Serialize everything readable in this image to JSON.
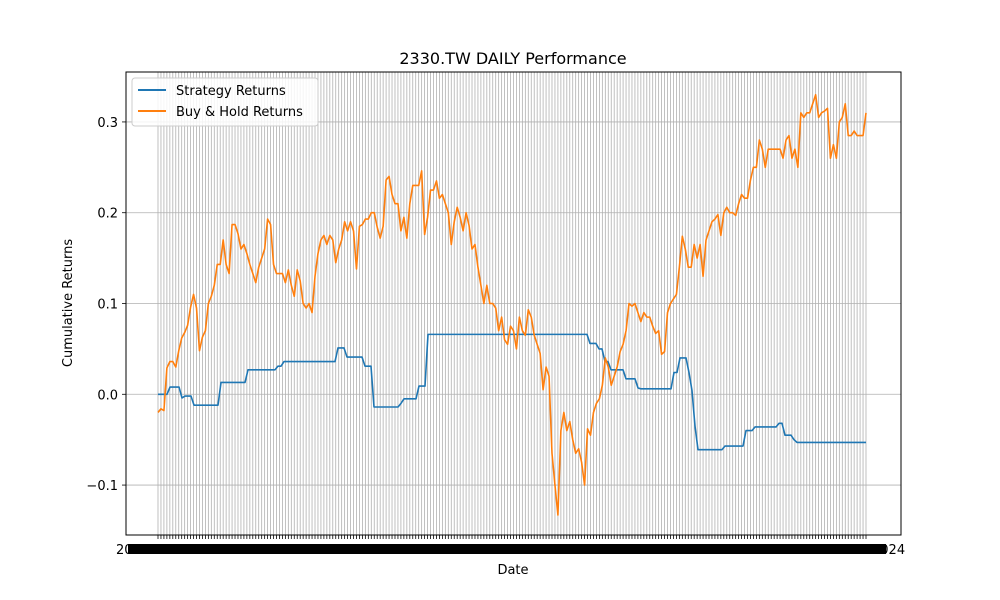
{
  "chart_data": {
    "type": "line",
    "title": "2330.TW DAILY Performance",
    "xlabel": "Date",
    "ylabel": "Cumulative Returns",
    "ylim": [
      -0.155,
      0.355
    ],
    "yticks": [
      -0.1,
      0.0,
      0.1,
      0.2,
      0.3
    ],
    "ytick_labels": [
      "−0.1",
      "0.0",
      "0.1",
      "0.2",
      "0.3"
    ],
    "x_tick_count": 240,
    "x_tick_labels_note": "overlapping unreadable date labels",
    "x_start_label": "2023",
    "x_end_label": "2024",
    "grid": true,
    "legend_position": "top-left",
    "series": [
      {
        "name": "Strategy Returns",
        "color": "#1f77b4",
        "values": [
          0.0,
          0.0,
          0.0,
          0.0,
          0.008,
          0.008,
          0.008,
          0.008,
          -0.004,
          -0.002,
          -0.002,
          -0.002,
          -0.012,
          -0.012,
          -0.012,
          -0.012,
          -0.012,
          -0.012,
          -0.012,
          -0.012,
          -0.012,
          0.013,
          0.013,
          0.013,
          0.013,
          0.013,
          0.013,
          0.013,
          0.013,
          0.013,
          0.027,
          0.027,
          0.027,
          0.027,
          0.027,
          0.027,
          0.027,
          0.027,
          0.027,
          0.027,
          0.031,
          0.031,
          0.036,
          0.036,
          0.036,
          0.036,
          0.036,
          0.036,
          0.036,
          0.036,
          0.036,
          0.036,
          0.036,
          0.036,
          0.036,
          0.036,
          0.036,
          0.036,
          0.036,
          0.036,
          0.051,
          0.051,
          0.051,
          0.041,
          0.041,
          0.041,
          0.041,
          0.041,
          0.041,
          0.031,
          0.031,
          0.031,
          -0.014,
          -0.014,
          -0.014,
          -0.014,
          -0.014,
          -0.014,
          -0.014,
          -0.014,
          -0.014,
          -0.01,
          -0.005,
          -0.005,
          -0.005,
          -0.005,
          -0.005,
          0.009,
          0.009,
          0.009,
          0.066,
          0.066,
          0.066,
          0.066,
          0.066,
          0.066,
          0.066,
          0.066,
          0.066,
          0.066,
          0.066,
          0.066,
          0.066,
          0.066,
          0.066,
          0.066,
          0.066,
          0.066,
          0.066,
          0.066,
          0.066,
          0.066,
          0.066,
          0.066,
          0.066,
          0.066,
          0.066,
          0.066,
          0.066,
          0.066,
          0.066,
          0.066,
          0.066,
          0.066,
          0.066,
          0.066,
          0.066,
          0.066,
          0.066,
          0.066,
          0.066,
          0.066,
          0.066,
          0.066,
          0.066,
          0.066,
          0.066,
          0.066,
          0.066,
          0.066,
          0.066,
          0.066,
          0.066,
          0.066,
          0.056,
          0.056,
          0.056,
          0.05,
          0.05,
          0.036,
          0.036,
          0.027,
          0.027,
          0.027,
          0.027,
          0.027,
          0.017,
          0.017,
          0.017,
          0.017,
          0.007,
          0.006,
          0.006,
          0.006,
          0.006,
          0.006,
          0.006,
          0.006,
          0.006,
          0.006,
          0.006,
          0.006,
          0.024,
          0.024,
          0.04,
          0.04,
          0.04,
          0.024,
          0.004,
          -0.035,
          -0.061,
          -0.061,
          -0.061,
          -0.061,
          -0.061,
          -0.061,
          -0.061,
          -0.061,
          -0.061,
          -0.057,
          -0.057,
          -0.057,
          -0.057,
          -0.057,
          -0.057,
          -0.057,
          -0.04,
          -0.04,
          -0.04,
          -0.036,
          -0.036,
          -0.036,
          -0.036,
          -0.036,
          -0.036,
          -0.036,
          -0.036,
          -0.032,
          -0.032,
          -0.045,
          -0.045,
          -0.045,
          -0.05,
          -0.053,
          -0.053,
          -0.053,
          -0.053,
          -0.053,
          -0.053,
          -0.053,
          -0.053,
          -0.053,
          -0.053,
          -0.053,
          -0.053,
          -0.053,
          -0.053,
          -0.053,
          -0.053,
          -0.053,
          -0.053,
          -0.053,
          -0.053,
          -0.053,
          -0.053,
          -0.053,
          -0.053
        ]
      },
      {
        "name": "Buy & Hold Returns",
        "color": "#ff7f0e",
        "values": [
          -0.02,
          -0.016,
          -0.018,
          0.029,
          0.036,
          0.036,
          0.03,
          0.048,
          0.062,
          0.068,
          0.076,
          0.096,
          0.11,
          0.095,
          0.048,
          0.063,
          0.07,
          0.1,
          0.108,
          0.12,
          0.143,
          0.143,
          0.17,
          0.143,
          0.133,
          0.187,
          0.187,
          0.177,
          0.16,
          0.165,
          0.155,
          0.143,
          0.133,
          0.123,
          0.14,
          0.15,
          0.16,
          0.193,
          0.187,
          0.143,
          0.133,
          0.133,
          0.133,
          0.123,
          0.137,
          0.12,
          0.108,
          0.137,
          0.125,
          0.1,
          0.095,
          0.1,
          0.09,
          0.13,
          0.155,
          0.17,
          0.175,
          0.165,
          0.175,
          0.17,
          0.145,
          0.16,
          0.17,
          0.19,
          0.18,
          0.19,
          0.18,
          0.138,
          0.185,
          0.187,
          0.193,
          0.193,
          0.2,
          0.2,
          0.184,
          0.172,
          0.185,
          0.236,
          0.24,
          0.22,
          0.21,
          0.21,
          0.18,
          0.195,
          0.172,
          0.21,
          0.23,
          0.23,
          0.23,
          0.246,
          0.176,
          0.195,
          0.225,
          0.225,
          0.235,
          0.216,
          0.22,
          0.21,
          0.2,
          0.165,
          0.19,
          0.206,
          0.195,
          0.18,
          0.2,
          0.186,
          0.16,
          0.165,
          0.14,
          0.12,
          0.1,
          0.12,
          0.1,
          0.1,
          0.095,
          0.07,
          0.085,
          0.06,
          0.055,
          0.075,
          0.07,
          0.05,
          0.085,
          0.07,
          0.065,
          0.093,
          0.085,
          0.065,
          0.055,
          0.045,
          0.005,
          0.03,
          0.02,
          -0.065,
          -0.1,
          -0.133,
          -0.04,
          -0.02,
          -0.04,
          -0.03,
          -0.05,
          -0.065,
          -0.06,
          -0.075,
          -0.1,
          -0.038,
          -0.045,
          -0.02,
          -0.01,
          -0.005,
          0.01,
          0.04,
          0.03,
          0.01,
          0.02,
          0.03,
          0.047,
          0.055,
          0.07,
          0.1,
          0.097,
          0.1,
          0.09,
          0.08,
          0.09,
          0.085,
          0.085,
          0.075,
          0.067,
          0.07,
          0.044,
          0.047,
          0.09,
          0.1,
          0.105,
          0.11,
          0.14,
          0.174,
          0.16,
          0.14,
          0.14,
          0.165,
          0.15,
          0.165,
          0.13,
          0.17,
          0.18,
          0.19,
          0.193,
          0.198,
          0.175,
          0.2,
          0.206,
          0.2,
          0.2,
          0.197,
          0.21,
          0.22,
          0.216,
          0.216,
          0.236,
          0.25,
          0.25,
          0.28,
          0.27,
          0.25,
          0.27,
          0.27,
          0.27,
          0.27,
          0.27,
          0.26,
          0.28,
          0.285,
          0.26,
          0.27,
          0.25,
          0.31,
          0.305,
          0.31,
          0.31,
          0.32,
          0.33,
          0.305,
          0.31,
          0.312,
          0.315,
          0.26,
          0.275,
          0.26,
          0.3,
          0.305,
          0.32,
          0.285,
          0.285,
          0.29,
          0.285,
          0.285,
          0.285,
          0.31
        ]
      }
    ]
  }
}
